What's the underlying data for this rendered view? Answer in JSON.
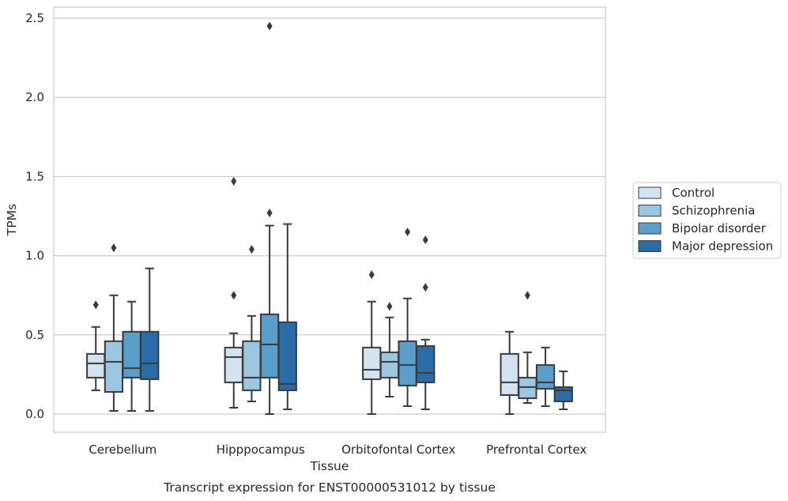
{
  "chart_data": {
    "type": "boxplot",
    "xlabel": "Tissue",
    "ylabel": "TPMs",
    "caption": "Transcript expression for ENST00000531012 by tissue",
    "ylim": [
      -0.12,
      2.58
    ],
    "yticks": [
      0.0,
      0.5,
      1.0,
      1.5,
      2.0,
      2.5
    ],
    "ytick_labels": [
      "0.0",
      "0.5",
      "1.0",
      "1.5",
      "2.0",
      "2.5"
    ],
    "grid": "horizontal",
    "legend_position": "right",
    "categories": [
      "Cerebellum",
      "Hipppocampus",
      "Orbitofontal Cortex",
      "Prefrontal Cortex"
    ],
    "series": [
      {
        "name": "Control",
        "color": "#d3e3f2",
        "boxes": [
          {
            "whislo": 0.15,
            "q1": 0.23,
            "med": 0.32,
            "q3": 0.38,
            "whishi": 0.55,
            "fliers": [
              0.69
            ]
          },
          {
            "whislo": 0.04,
            "q1": 0.2,
            "med": 0.36,
            "q3": 0.42,
            "whishi": 0.51,
            "fliers": [
              0.75,
              1.47
            ]
          },
          {
            "whislo": 0.0,
            "q1": 0.22,
            "med": 0.28,
            "q3": 0.42,
            "whishi": 0.71,
            "fliers": [
              0.88
            ]
          },
          {
            "whislo": 0.0,
            "q1": 0.12,
            "med": 0.2,
            "q3": 0.38,
            "whishi": 0.52,
            "fliers": []
          }
        ]
      },
      {
        "name": "Schizophrenia",
        "color": "#9bc7e0",
        "boxes": [
          {
            "whislo": 0.02,
            "q1": 0.14,
            "med": 0.33,
            "q3": 0.46,
            "whishi": 0.75,
            "fliers": [
              1.05
            ]
          },
          {
            "whislo": 0.08,
            "q1": 0.15,
            "med": 0.23,
            "q3": 0.46,
            "whishi": 0.62,
            "fliers": [
              1.04
            ]
          },
          {
            "whislo": 0.11,
            "q1": 0.23,
            "med": 0.33,
            "q3": 0.39,
            "whishi": 0.61,
            "fliers": [
              0.68
            ]
          },
          {
            "whislo": 0.07,
            "q1": 0.1,
            "med": 0.17,
            "q3": 0.23,
            "whishi": 0.39,
            "fliers": [
              0.75
            ]
          }
        ]
      },
      {
        "name": "Bipolar disorder",
        "color": "#5a9ecb",
        "boxes": [
          {
            "whislo": 0.02,
            "q1": 0.23,
            "med": 0.29,
            "q3": 0.52,
            "whishi": 0.71,
            "fliers": []
          },
          {
            "whislo": 0.0,
            "q1": 0.23,
            "med": 0.44,
            "q3": 0.63,
            "whishi": 1.19,
            "fliers": [
              1.27,
              2.45
            ]
          },
          {
            "whislo": 0.05,
            "q1": 0.18,
            "med": 0.31,
            "q3": 0.46,
            "whishi": 0.73,
            "fliers": [
              1.15
            ]
          },
          {
            "whislo": 0.05,
            "q1": 0.16,
            "med": 0.2,
            "q3": 0.31,
            "whishi": 0.42,
            "fliers": []
          }
        ]
      },
      {
        "name": "Major depression",
        "color": "#2b6ca8",
        "boxes": [
          {
            "whislo": 0.02,
            "q1": 0.22,
            "med": 0.32,
            "q3": 0.52,
            "whishi": 0.92,
            "fliers": []
          },
          {
            "whislo": 0.03,
            "q1": 0.15,
            "med": 0.19,
            "q3": 0.58,
            "whishi": 1.2,
            "fliers": []
          },
          {
            "whislo": 0.03,
            "q1": 0.2,
            "med": 0.26,
            "q3": 0.43,
            "whishi": 0.47,
            "fliers": [
              0.8,
              1.1
            ]
          },
          {
            "whislo": 0.03,
            "q1": 0.08,
            "med": 0.15,
            "q3": 0.17,
            "whishi": 0.27,
            "fliers": []
          }
        ]
      }
    ]
  }
}
